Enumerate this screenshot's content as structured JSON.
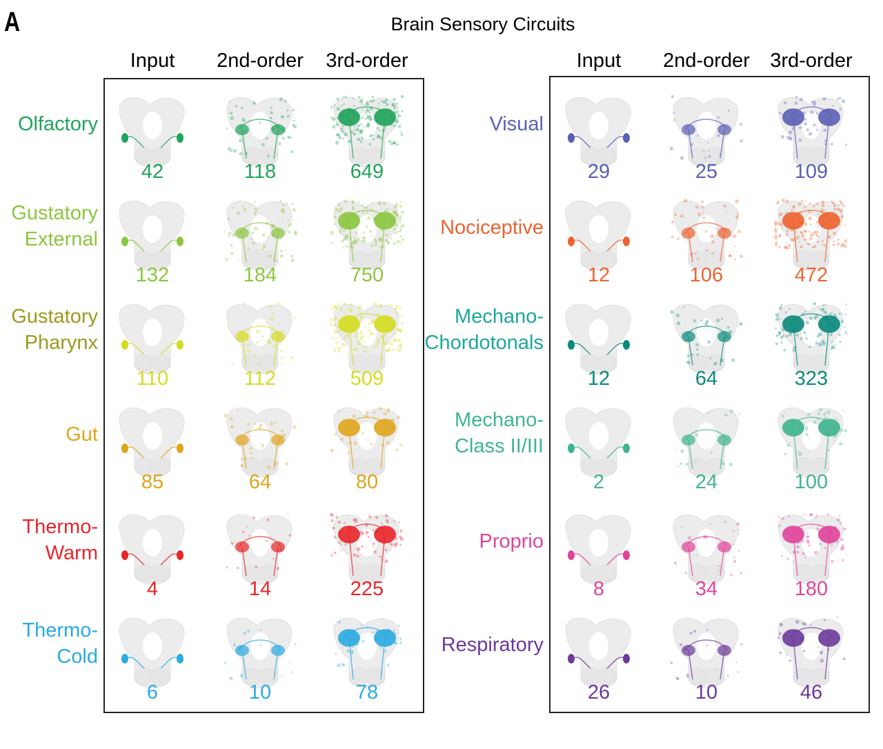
{
  "panel_letter": "A",
  "title": "Brain Sensory Circuits",
  "column_headers": [
    "Input",
    "2nd-order",
    "3rd-order"
  ],
  "left_panel": [
    {
      "label": "Olfactory",
      "color": "#1fa45a",
      "label_color": "#1fa45a",
      "counts": [
        "42",
        "118",
        "649"
      ]
    },
    {
      "label": "Gustatory\nExternal",
      "color": "#8cc63f",
      "label_color": "#8cc63f",
      "counts": [
        "132",
        "184",
        "750"
      ]
    },
    {
      "label": "Gustatory\nPharynx",
      "color": "#d6dc22",
      "label_color": "#9c9a1e",
      "counts": [
        "110",
        "112",
        "509"
      ]
    },
    {
      "label": "Gut",
      "color": "#e0a51e",
      "label_color": "#e0a51e",
      "counts": [
        "85",
        "64",
        "80"
      ]
    },
    {
      "label": "Thermo-\nWarm",
      "color": "#e8262a",
      "label_color": "#e8262a",
      "counts": [
        "4",
        "14",
        "225"
      ]
    },
    {
      "label": "Thermo-\nCold",
      "color": "#29aae1",
      "label_color": "#29aae1",
      "counts": [
        "6",
        "10",
        "78"
      ]
    }
  ],
  "right_panel": [
    {
      "label": "Visual",
      "color": "#5b5fb5",
      "label_color": "#5b5fb5",
      "counts": [
        "29",
        "25",
        "109"
      ]
    },
    {
      "label": "Nociceptive",
      "color": "#ee6330",
      "label_color": "#ee6330",
      "counts": [
        "12",
        "106",
        "472"
      ]
    },
    {
      "label": "Mechano-\nChordotonals",
      "color": "#0a8a7c",
      "label_color": "#1aa89a",
      "counts": [
        "12",
        "64",
        "323"
      ]
    },
    {
      "label": "Mechano-\nClass II/III",
      "color": "#3fb58f",
      "label_color": "#3fb58f",
      "counts": [
        "2",
        "24",
        "100"
      ]
    },
    {
      "label": "Proprio",
      "color": "#e0449a",
      "label_color": "#e0449a",
      "counts": [
        "8",
        "34",
        "180"
      ]
    },
    {
      "label": "Respiratory",
      "color": "#6b3a9c",
      "label_color": "#6b3a9c",
      "counts": [
        "26",
        "10",
        "46"
      ]
    }
  ]
}
